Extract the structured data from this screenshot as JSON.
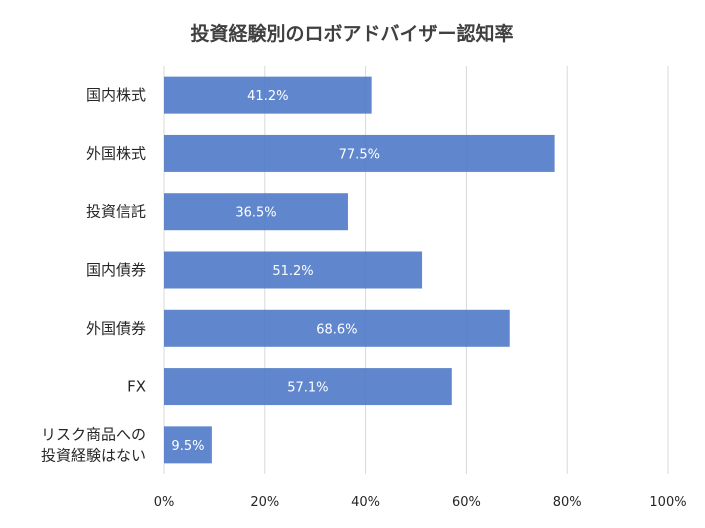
{
  "chart_data": {
    "type": "bar",
    "orientation": "horizontal",
    "title": "投資経験別のロボアドバイザー認知率",
    "categories": [
      [
        "国内株式"
      ],
      [
        "外国株式"
      ],
      [
        "投資信託"
      ],
      [
        "国内債券"
      ],
      [
        "外国債券"
      ],
      [
        "FX"
      ],
      [
        "リスク商品への",
        "投資経験はない"
      ]
    ],
    "values": [
      41.2,
      77.5,
      36.5,
      51.2,
      68.6,
      57.1,
      9.5
    ],
    "data_labels": [
      "41.2%",
      "77.5%",
      "36.5%",
      "51.2%",
      "68.6%",
      "57.1%",
      "9.5%"
    ],
    "x_ticks": [
      "0%",
      "20%",
      "40%",
      "60%",
      "80%",
      "100%"
    ],
    "xlim": [
      0,
      100
    ],
    "grid": "vertical",
    "color": "#4472c4"
  }
}
